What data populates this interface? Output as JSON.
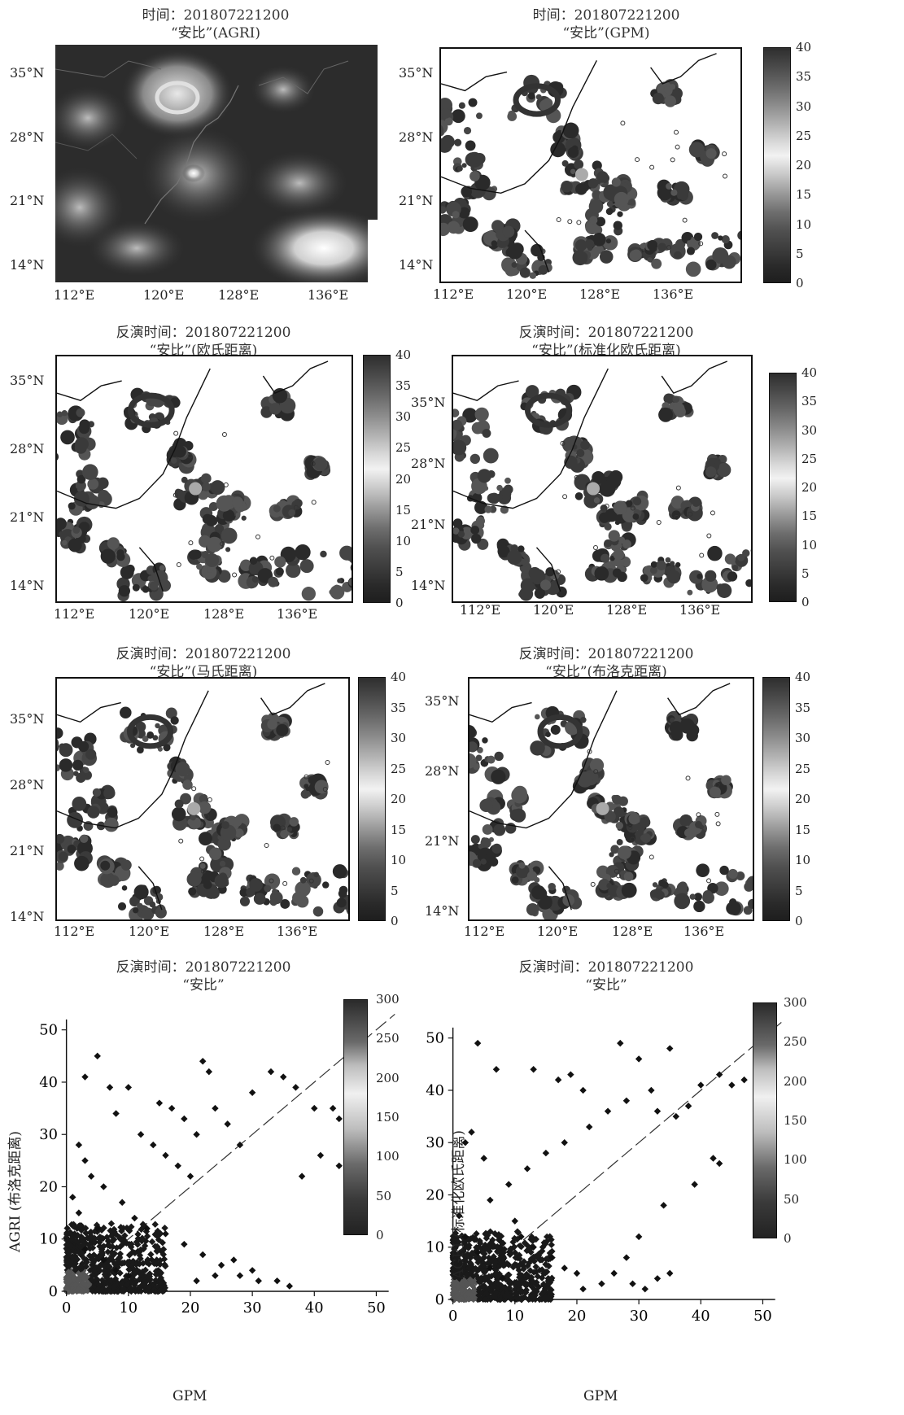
{
  "panels": [
    {
      "id": "p1",
      "title1": "时间：201807221200",
      "title2": "“安比”(AGRI)"
    },
    {
      "id": "p2",
      "title1": "时间：201807221200",
      "title2": "“安比”(GPM)"
    },
    {
      "id": "p3",
      "title1": "反演时间：201807221200",
      "title2": "“安比”(欧氏距离)"
    },
    {
      "id": "p4",
      "title1": "反演时间：201807221200",
      "title2": "“安比”(标准化欧氏距离)"
    },
    {
      "id": "p5",
      "title1": "反演时间：201807221200",
      "title2": "“安比”(马氏距离)"
    },
    {
      "id": "p6",
      "title1": "反演时间：201807221200",
      "title2": "“安比”(布洛克距离)"
    },
    {
      "id": "p7",
      "title1": "反演时间：201807221200",
      "title2": "“安比”"
    },
    {
      "id": "p8",
      "title1": "反演时间：201807221200",
      "title2": "“安比”"
    }
  ],
  "map_axes": {
    "lat_ticks": [
      "35°N",
      "28°N",
      "21°N",
      "14°N"
    ],
    "lon_ticks": [
      "112°E",
      "120°E",
      "128°E",
      "136°E"
    ]
  },
  "colorbar_map": {
    "ticks": [
      "40",
      "35",
      "30",
      "25",
      "20",
      "15",
      "10",
      "5",
      "0"
    ]
  },
  "colorbar_scatter": {
    "ticks": [
      "300",
      "250",
      "200",
      "150",
      "100",
      "50",
      "0"
    ]
  },
  "scatter_axes": {
    "xlabel": "GPM",
    "ylabel_left": "AGRI (布洛克距离)",
    "ylabel_right": "AGRI (标准化欧氏距离)",
    "x_ticks": [
      "0",
      "10",
      "20",
      "30",
      "40",
      "50"
    ],
    "y_ticks": [
      "0",
      "10",
      "20",
      "30",
      "40",
      "50"
    ]
  },
  "chart_data": [
    {
      "type": "heatmap",
      "title": "时间：201807221200 “安比”(AGRI)",
      "xlabel": "",
      "ylabel": "",
      "x_range": [
        110,
        140
      ],
      "y_range": [
        11,
        38
      ],
      "grid": false
    },
    {
      "type": "heatmap",
      "title": "时间：201807221200 “安比”(GPM)",
      "colorbar_range": [
        0,
        40
      ],
      "x_range": [
        110,
        140
      ],
      "y_range": [
        11,
        38
      ],
      "grid": false
    },
    {
      "type": "heatmap",
      "title": "反演时间：201807221200 “安比”(欧氏距离)",
      "colorbar_range": [
        0,
        40
      ],
      "x_range": [
        110,
        140
      ],
      "y_range": [
        11,
        38
      ],
      "grid": false
    },
    {
      "type": "heatmap",
      "title": "反演时间：201807221200 “安比”(标准化欧氏距离)",
      "colorbar_range": [
        0,
        40
      ],
      "x_range": [
        110,
        140
      ],
      "y_range": [
        11,
        38
      ],
      "grid": false
    },
    {
      "type": "heatmap",
      "title": "反演时间：201807221200 “安比”(马氏距离)",
      "colorbar_range": [
        0,
        40
      ],
      "x_range": [
        110,
        140
      ],
      "y_range": [
        11,
        38
      ],
      "grid": false
    },
    {
      "type": "heatmap",
      "title": "反演时间：201807221200 “安比”(布洛克距离)",
      "colorbar_range": [
        0,
        40
      ],
      "x_range": [
        110,
        140
      ],
      "y_range": [
        11,
        38
      ],
      "grid": false
    },
    {
      "type": "scatter",
      "title": "反演时间：201807221200 “安比”",
      "xlabel": "GPM",
      "ylabel": "AGRI (布洛克距离)",
      "xlim": [
        0,
        50
      ],
      "ylim": [
        0,
        50
      ],
      "colorbar_range": [
        0,
        300
      ],
      "points": [
        [
          5,
          45
        ],
        [
          3,
          41
        ],
        [
          7,
          39
        ],
        [
          10,
          39
        ],
        [
          15,
          36
        ],
        [
          17,
          35
        ],
        [
          19,
          33
        ],
        [
          22,
          44
        ],
        [
          23,
          42
        ],
        [
          8,
          34
        ],
        [
          12,
          30
        ],
        [
          14,
          28
        ],
        [
          16,
          26
        ],
        [
          18,
          24
        ],
        [
          20,
          22
        ],
        [
          21,
          30
        ],
        [
          24,
          35
        ],
        [
          26,
          32
        ],
        [
          28,
          28
        ],
        [
          30,
          38
        ],
        [
          33,
          42
        ],
        [
          35,
          41
        ],
        [
          37,
          39
        ],
        [
          40,
          35
        ],
        [
          43,
          35
        ],
        [
          44,
          33
        ],
        [
          47,
          40
        ],
        [
          44,
          24
        ],
        [
          41,
          26
        ],
        [
          38,
          22
        ],
        [
          6,
          20
        ],
        [
          9,
          17
        ],
        [
          11,
          14
        ],
        [
          13,
          12
        ],
        [
          16,
          11
        ],
        [
          19,
          9
        ],
        [
          22,
          7
        ],
        [
          25,
          5
        ],
        [
          28,
          3
        ],
        [
          31,
          2
        ],
        [
          34,
          2
        ],
        [
          36,
          1
        ],
        [
          30,
          4
        ],
        [
          27,
          6
        ],
        [
          24,
          3
        ],
        [
          21,
          2
        ],
        [
          2,
          28
        ],
        [
          3,
          25
        ],
        [
          4,
          22
        ],
        [
          1,
          18
        ],
        [
          2,
          15
        ],
        [
          5,
          12
        ],
        [
          3,
          8
        ],
        [
          6,
          6
        ],
        [
          8,
          4
        ],
        [
          10,
          3
        ]
      ],
      "reference_line": "y=x"
    },
    {
      "type": "scatter",
      "title": "反演时间：201807221200 “安比”",
      "xlabel": "GPM",
      "ylabel": "AGRI (标准化欧氏距离)",
      "xlim": [
        0,
        50
      ],
      "ylim": [
        0,
        50
      ],
      "colorbar_range": [
        0,
        300
      ],
      "points": [
        [
          4,
          49
        ],
        [
          7,
          44
        ],
        [
          13,
          44
        ],
        [
          17,
          42
        ],
        [
          19,
          43
        ],
        [
          21,
          40
        ],
        [
          27,
          49
        ],
        [
          30,
          46
        ],
        [
          35,
          48
        ],
        [
          32,
          40
        ],
        [
          28,
          38
        ],
        [
          25,
          36
        ],
        [
          22,
          33
        ],
        [
          18,
          30
        ],
        [
          15,
          28
        ],
        [
          12,
          25
        ],
        [
          9,
          22
        ],
        [
          6,
          19
        ],
        [
          3,
          32
        ],
        [
          2,
          30
        ],
        [
          5,
          27
        ],
        [
          33,
          36
        ],
        [
          36,
          35
        ],
        [
          38,
          37
        ],
        [
          40,
          41
        ],
        [
          43,
          43
        ],
        [
          45,
          41
        ],
        [
          47,
          42
        ],
        [
          42,
          27
        ],
        [
          43,
          26
        ],
        [
          39,
          22
        ],
        [
          34,
          18
        ],
        [
          30,
          12
        ],
        [
          28,
          8
        ],
        [
          26,
          5
        ],
        [
          24,
          3
        ],
        [
          21,
          2
        ],
        [
          31,
          2
        ],
        [
          33,
          4
        ],
        [
          35,
          5
        ],
        [
          29,
          3
        ],
        [
          10,
          15
        ],
        [
          11,
          12
        ],
        [
          13,
          10
        ],
        [
          16,
          8
        ],
        [
          18,
          6
        ],
        [
          20,
          5
        ],
        [
          1,
          16
        ],
        [
          2,
          12
        ],
        [
          4,
          9
        ],
        [
          6,
          6
        ],
        [
          8,
          4
        ]
      ],
      "reference_line": "y=x"
    }
  ]
}
